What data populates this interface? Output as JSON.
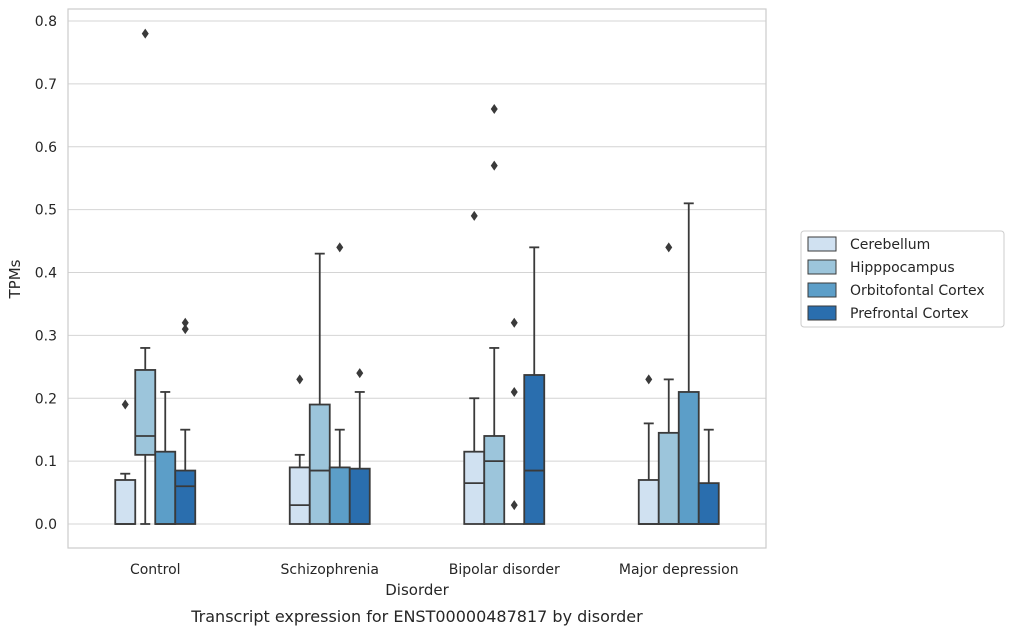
{
  "chart_data": {
    "type": "box",
    "caption": "Transcript expression for ENST00000487817 by disorder",
    "xlabel": "Disorder",
    "ylabel": "TPMs",
    "ylim": [
      -0.04,
      0.82
    ],
    "yticks": [
      "0.0",
      "0.1",
      "0.2",
      "0.3",
      "0.4",
      "0.5",
      "0.6",
      "0.7",
      "0.8"
    ],
    "grid": true,
    "legend_position": "right",
    "categories": [
      "Control",
      "Schizophrenia",
      "Bipolar disorder",
      "Major depression"
    ],
    "series": [
      {
        "name": "Cerebellum",
        "color": "#d0e1f1",
        "boxes": [
          {
            "q1": 0.0,
            "median": 0.0,
            "q3": 0.07,
            "whisker_low": 0.0,
            "whisker_high": 0.08,
            "outliers": [
              0.19
            ]
          },
          {
            "q1": 0.0,
            "median": 0.03,
            "q3": 0.09,
            "whisker_low": 0.0,
            "whisker_high": 0.11,
            "outliers": [
              0.23
            ]
          },
          {
            "q1": 0.0,
            "median": 0.065,
            "q3": 0.115,
            "whisker_low": 0.0,
            "whisker_high": 0.2,
            "outliers": [
              0.49
            ]
          },
          {
            "q1": 0.0,
            "median": 0.0,
            "q3": 0.07,
            "whisker_low": 0.0,
            "whisker_high": 0.16,
            "outliers": [
              0.23
            ]
          }
        ]
      },
      {
        "name": "Hipppocampus",
        "color": "#9cc5db",
        "boxes": [
          {
            "q1": 0.11,
            "median": 0.14,
            "q3": 0.245,
            "whisker_low": 0.0,
            "whisker_high": 0.28,
            "outliers": [
              0.78
            ]
          },
          {
            "q1": 0.0,
            "median": 0.085,
            "q3": 0.19,
            "whisker_low": 0.0,
            "whisker_high": 0.43,
            "outliers": []
          },
          {
            "q1": 0.0,
            "median": 0.1,
            "q3": 0.14,
            "whisker_low": 0.0,
            "whisker_high": 0.28,
            "outliers": [
              0.57,
              0.66
            ]
          },
          {
            "q1": 0.0,
            "median": 0.0,
            "q3": 0.145,
            "whisker_low": 0.0,
            "whisker_high": 0.23,
            "outliers": [
              0.44
            ]
          }
        ]
      },
      {
        "name": "Orbitofontal Cortex",
        "color": "#5c9ec8",
        "boxes": [
          {
            "q1": 0.0,
            "median": 0.0,
            "q3": 0.115,
            "whisker_low": 0.0,
            "whisker_high": 0.21,
            "outliers": []
          },
          {
            "q1": 0.0,
            "median": 0.0,
            "q3": 0.09,
            "whisker_low": 0.0,
            "whisker_high": 0.15,
            "outliers": [
              0.44
            ]
          },
          {
            "q1": 0.0,
            "median": 0.0,
            "q3": 0.0,
            "whisker_low": 0.0,
            "whisker_high": 0.0,
            "outliers": [
              0.03,
              0.21,
              0.32
            ]
          },
          {
            "q1": 0.0,
            "median": 0.0,
            "q3": 0.21,
            "whisker_low": 0.0,
            "whisker_high": 0.51,
            "outliers": []
          }
        ]
      },
      {
        "name": "Prefrontal Cortex",
        "color": "#2a6eae",
        "boxes": [
          {
            "q1": 0.0,
            "median": 0.06,
            "q3": 0.085,
            "whisker_low": 0.0,
            "whisker_high": 0.15,
            "outliers": [
              0.31,
              0.32
            ]
          },
          {
            "q1": 0.0,
            "median": 0.0,
            "q3": 0.088,
            "whisker_low": 0.0,
            "whisker_high": 0.21,
            "outliers": [
              0.24
            ]
          },
          {
            "q1": 0.0,
            "median": 0.085,
            "q3": 0.237,
            "whisker_low": 0.0,
            "whisker_high": 0.44,
            "outliers": []
          },
          {
            "q1": 0.0,
            "median": 0.0,
            "q3": 0.065,
            "whisker_low": 0.0,
            "whisker_high": 0.15,
            "outliers": []
          }
        ]
      }
    ]
  }
}
